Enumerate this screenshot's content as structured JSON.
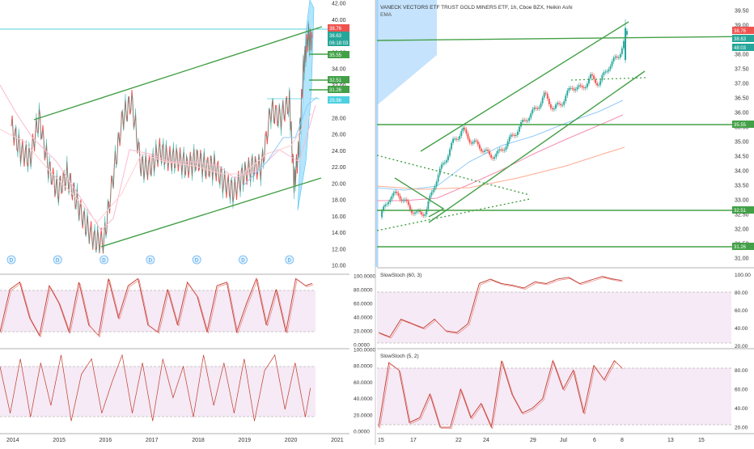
{
  "header": {
    "symbol_title": "VANECK VECTORS ETF TRUST GOLD MINERS ETF, 1h, Cboe BZX, Heikin Ashi",
    "indicator": "EMA"
  },
  "price_tags": {
    "left": [
      "38.76",
      "38.63",
      "06:18:03",
      "35.55",
      "32.51",
      "31.26",
      "29.96"
    ],
    "right": [
      "38.76",
      "38.63",
      "48:03",
      "35.55",
      "32.51",
      "31.26"
    ]
  },
  "stoch_labels": {
    "right_upper": "SlowStoch (60, 3)",
    "right_lower": "SlowStoch (5, 2)"
  },
  "colors": {
    "candle_up": "#26a69a",
    "candle_down": "#ef5350",
    "trend": "#43a047",
    "stoch": "#c0392b",
    "band": "#f3e7f3",
    "axis_text": "#333333",
    "tag_red": "#ef5350",
    "tag_teal": "#26a69a",
    "tag_green": "#43a047"
  },
  "chart_data": [
    {
      "type": "line",
      "panel": "left-price",
      "x_ticks": [
        "2014",
        "2015",
        "2016",
        "2017",
        "2018",
        "2019",
        "2020",
        "2021"
      ],
      "y_ticks": [
        "42.00",
        "40.00",
        "38.00",
        "36.00",
        "34.00",
        "32.00",
        "30.00",
        "28.00",
        "26.00",
        "24.00",
        "22.00",
        "20.00",
        "18.00",
        "16.00",
        "14.00",
        "12.00",
        "10.00"
      ],
      "ylim": [
        10,
        42
      ],
      "markers": [
        "D",
        "D",
        "D",
        "D",
        "D",
        "D",
        "D"
      ],
      "series": [
        {
          "x": [
            2014.0,
            2014.2,
            2014.4,
            2014.6,
            2014.8,
            2015.0,
            2015.2,
            2015.4,
            2015.6,
            2015.8,
            2016.0,
            2016.2,
            2016.4,
            2016.6,
            2016.8,
            2017.0,
            2017.2,
            2017.4,
            2017.6,
            2017.8,
            2018.0,
            2018.2,
            2018.4,
            2018.6,
            2018.8,
            2019.0,
            2019.2,
            2019.4,
            2019.6,
            2019.8,
            2020.0,
            2020.1,
            2020.2,
            2020.3,
            2020.4,
            2020.5
          ],
          "values": [
            27,
            24,
            23,
            28,
            22,
            19,
            21,
            18,
            15,
            13,
            13,
            21,
            28,
            30,
            22,
            22,
            24,
            23,
            23,
            22,
            23,
            22,
            22,
            20,
            19,
            21,
            22,
            22,
            29,
            28,
            30,
            20,
            24,
            34,
            38,
            37
          ]
        }
      ]
    },
    {
      "type": "line",
      "panel": "right-price",
      "x_ticks": [
        "15",
        "17",
        "22",
        "24",
        "29",
        "Jul",
        "6",
        "8",
        "13",
        "15"
      ],
      "y_ticks": [
        "39.50",
        "39.00",
        "38.50",
        "38.00",
        "37.50",
        "37.00",
        "36.50",
        "36.00",
        "35.50",
        "35.00",
        "34.50",
        "34.00",
        "33.50",
        "33.00",
        "32.50",
        "32.00",
        "31.50",
        "31.00"
      ],
      "ylim": [
        30.75,
        39.75
      ],
      "series": [
        {
          "x": [
            15,
            16,
            17,
            18,
            19,
            20,
            21,
            22,
            23,
            24,
            25,
            26,
            27,
            28,
            29,
            30,
            31,
            32,
            33,
            34,
            35,
            36,
            37,
            38,
            39,
            40,
            41,
            42
          ],
          "values": [
            32.4,
            33.1,
            33.2,
            32.8,
            32.5,
            32.6,
            33.6,
            34.3,
            35.0,
            35.4,
            35.0,
            34.8,
            34.5,
            34.6,
            35.0,
            35.4,
            35.8,
            36.1,
            36.6,
            36.1,
            36.4,
            36.9,
            36.8,
            37.2,
            37.0,
            37.6,
            37.9,
            38.7
          ]
        }
      ]
    },
    {
      "type": "line",
      "panel": "left-stoch-upper",
      "y_ticks": [
        "100.0000",
        "80.0000",
        "60.0000",
        "40.0000",
        "20.0000",
        "0.0000"
      ],
      "ylim": [
        0,
        100
      ],
      "series": [
        {
          "values": [
            20,
            80,
            90,
            40,
            15,
            85,
            60,
            20,
            90,
            30,
            15,
            95,
            40,
            85,
            95,
            30,
            20,
            80,
            30,
            90,
            70,
            20,
            85,
            90,
            20,
            60,
            95,
            30,
            80,
            20,
            95,
            85,
            90
          ]
        }
      ]
    },
    {
      "type": "line",
      "panel": "left-stoch-lower",
      "y_ticks": [
        "100.0000",
        "80.0000",
        "60.0000",
        "40.0000",
        "20.0000",
        "0.0000"
      ],
      "ylim": [
        0,
        100
      ],
      "series": [
        {
          "values": [
            80,
            20,
            90,
            15,
            85,
            30,
            95,
            10,
            70,
            90,
            20,
            60,
            95,
            20,
            85,
            10,
            90,
            40,
            80,
            15,
            95,
            30,
            85,
            20,
            90,
            10,
            75,
            95,
            25,
            85,
            15,
            90
          ]
        }
      ]
    },
    {
      "type": "line",
      "panel": "right-stoch-upper",
      "y_ticks": [
        "100.00",
        "80.00",
        "60.00",
        "40.00",
        "20.00"
      ],
      "ylim": [
        15,
        105
      ],
      "series": [
        {
          "values": [
            35,
            30,
            50,
            45,
            40,
            50,
            37,
            35,
            45,
            90,
            95,
            90,
            88,
            85,
            92,
            90,
            95,
            97,
            90,
            94,
            98,
            95,
            93
          ]
        }
      ]
    },
    {
      "type": "line",
      "panel": "right-stoch-lower",
      "y_ticks": [
        "80.00",
        "60.00",
        "40.00",
        "20.00"
      ],
      "ylim": [
        15,
        95
      ],
      "series": [
        {
          "values": [
            20,
            88,
            80,
            25,
            30,
            55,
            20,
            20,
            60,
            30,
            45,
            20,
            90,
            55,
            35,
            40,
            50,
            90,
            60,
            80,
            35,
            85,
            70,
            90,
            80
          ]
        }
      ]
    }
  ]
}
